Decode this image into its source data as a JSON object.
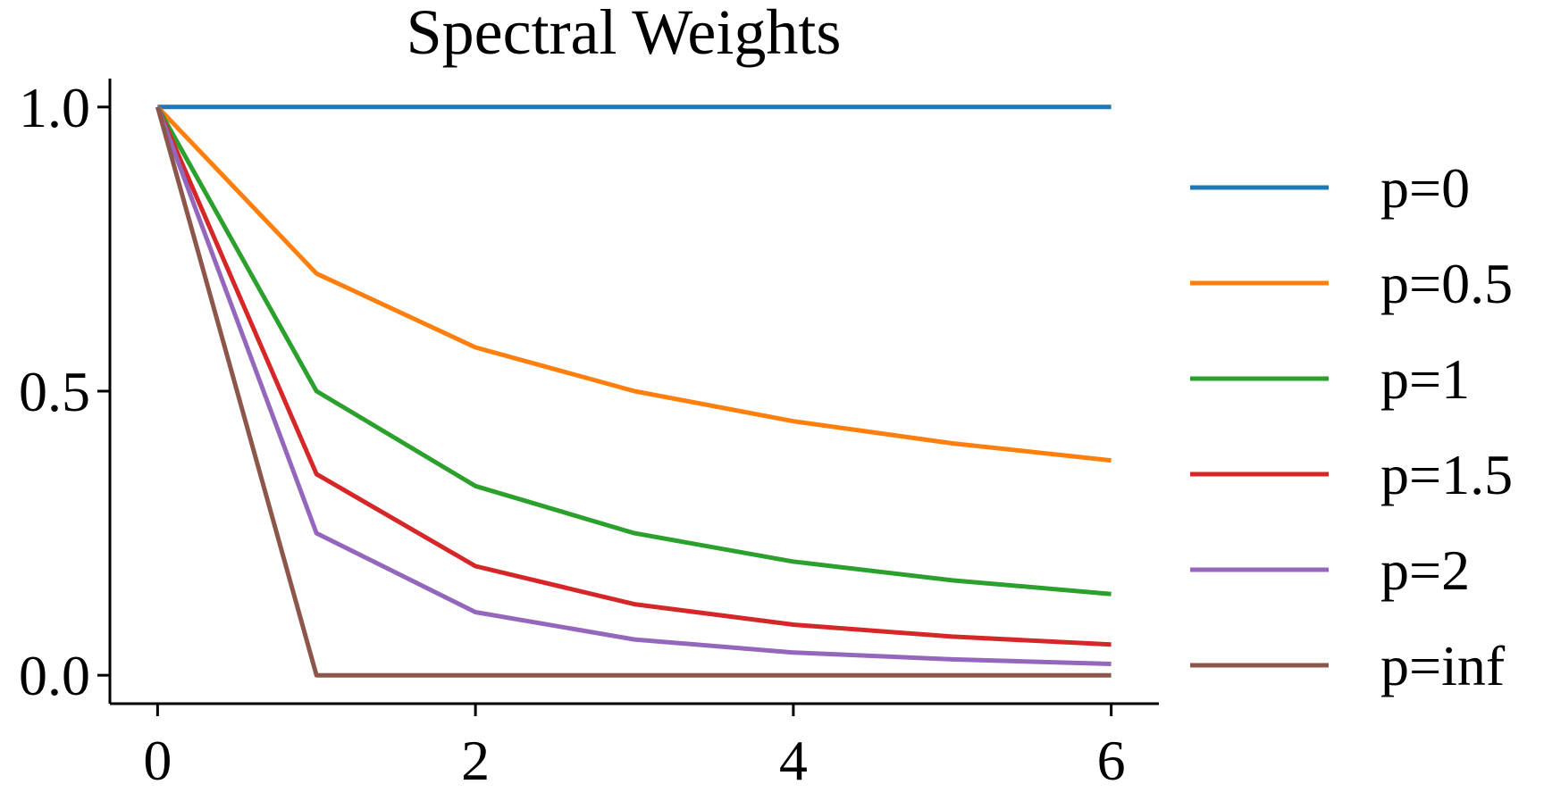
{
  "chart_data": {
    "type": "line",
    "title": "Spectral Weights",
    "xlabel": "",
    "ylabel": "",
    "xlim": [
      -0.3,
      6.3
    ],
    "ylim": [
      -0.05,
      1.05
    ],
    "x": [
      0,
      1,
      2,
      3,
      4,
      5,
      6
    ],
    "xticks": [
      0,
      2,
      4,
      6
    ],
    "xtick_labels": [
      "0",
      "2",
      "4",
      "6"
    ],
    "yticks": [
      0.0,
      0.5,
      1.0
    ],
    "ytick_labels": [
      "0.0",
      "0.5",
      "1.0"
    ],
    "grid": false,
    "legend_position": "right",
    "series": [
      {
        "name": "p=0",
        "color": "#1f77b4",
        "values": [
          1.0,
          1.0,
          1.0,
          1.0,
          1.0,
          1.0,
          1.0
        ]
      },
      {
        "name": "p=0.5",
        "color": "#ff7f0e",
        "values": [
          1.0,
          0.707,
          0.577,
          0.5,
          0.447,
          0.408,
          0.378
        ]
      },
      {
        "name": "p=1",
        "color": "#2ca02c",
        "values": [
          1.0,
          0.5,
          0.333,
          0.25,
          0.2,
          0.167,
          0.143
        ]
      },
      {
        "name": "p=1.5",
        "color": "#d62728",
        "values": [
          1.0,
          0.354,
          0.192,
          0.125,
          0.089,
          0.068,
          0.054
        ]
      },
      {
        "name": "p=2",
        "color": "#9467bd",
        "values": [
          1.0,
          0.25,
          0.111,
          0.063,
          0.04,
          0.028,
          0.02
        ]
      },
      {
        "name": "p=inf",
        "color": "#8c564b",
        "values": [
          1.0,
          0.0,
          0.0,
          0.0,
          0.0,
          0.0,
          0.0
        ]
      }
    ]
  }
}
